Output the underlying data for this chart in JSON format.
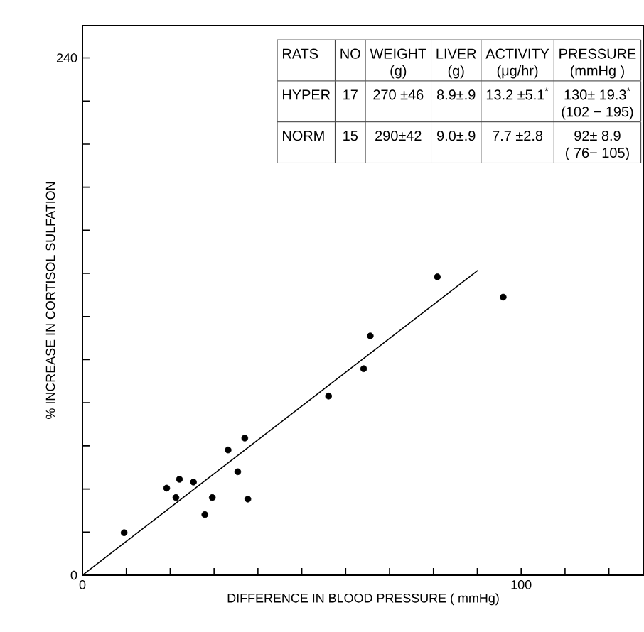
{
  "chart_data": {
    "type": "scatter",
    "xlabel": "DIFFERENCE IN BLOOD PRESSURE ( mmHg)",
    "ylabel": "% INCREASE IN CORTISOL SULFATION",
    "xlim": [
      0,
      128
    ],
    "ylim": [
      0,
      255
    ],
    "xticks": [
      0,
      {
        "value": 10,
        "label": null
      },
      {
        "value": 20,
        "label": null
      },
      {
        "value": 30,
        "label": null
      },
      {
        "value": 40,
        "label": null
      },
      {
        "value": 50,
        "label": null
      },
      {
        "value": 60,
        "label": null
      },
      {
        "value": 70,
        "label": null
      },
      {
        "value": 80,
        "label": null
      },
      {
        "value": 90,
        "label": null
      },
      100,
      {
        "value": 110,
        "label": null
      },
      {
        "value": 120,
        "label": null
      }
    ],
    "yticks": [
      0,
      {
        "value": 20,
        "label": null
      },
      {
        "value": 40,
        "label": null
      },
      {
        "value": 60,
        "label": null
      },
      {
        "value": 80,
        "label": null
      },
      {
        "value": 100,
        "label": null
      },
      {
        "value": 120,
        "label": null
      },
      {
        "value": 140,
        "label": null
      },
      {
        "value": 160,
        "label": null
      },
      {
        "value": 180,
        "label": null
      },
      {
        "value": 200,
        "label": null
      },
      {
        "value": 220,
        "label": null
      },
      240
    ],
    "grid": false,
    "series": [
      {
        "marker": "circle",
        "color": "#000000",
        "x": [
          9.5,
          19.2,
          21.3,
          22.1,
          25.3,
          27.9,
          29.6,
          33.2,
          35.4,
          37,
          37.7,
          56.1,
          64.1,
          65.6,
          80.9,
          95.9
        ],
        "values": [
          19.7,
          40.4,
          36,
          44.5,
          43.2,
          28.1,
          36,
          58.1,
          48,
          63.6,
          35.3,
          83.1,
          95.8,
          111,
          138.4,
          129
        ]
      },
      {
        "type": "line",
        "marker": "none",
        "line_style": "solid",
        "color": "#000000",
        "x": [
          0,
          90.1
        ],
        "values": [
          0,
          141.4
        ]
      }
    ],
    "annotations": [
      "RATS",
      "NO",
      "WEIGHT",
      "(g)",
      "LIVER",
      "(g)",
      "ACTIVITY",
      "(μg/hr)",
      "PRESSURE",
      "(mmHg )",
      "HYPER",
      "17",
      "270 ±46",
      "8.9±.9",
      "13.2 ±5.1$^{*}$",
      "130± 19.3$^{*}$",
      "(102 − 195)",
      "NORM",
      "15",
      "290±42",
      "9.0±.9",
      "7.7 ±2.8",
      "92± 8.9",
      "( 76− 105)"
    ]
  }
}
